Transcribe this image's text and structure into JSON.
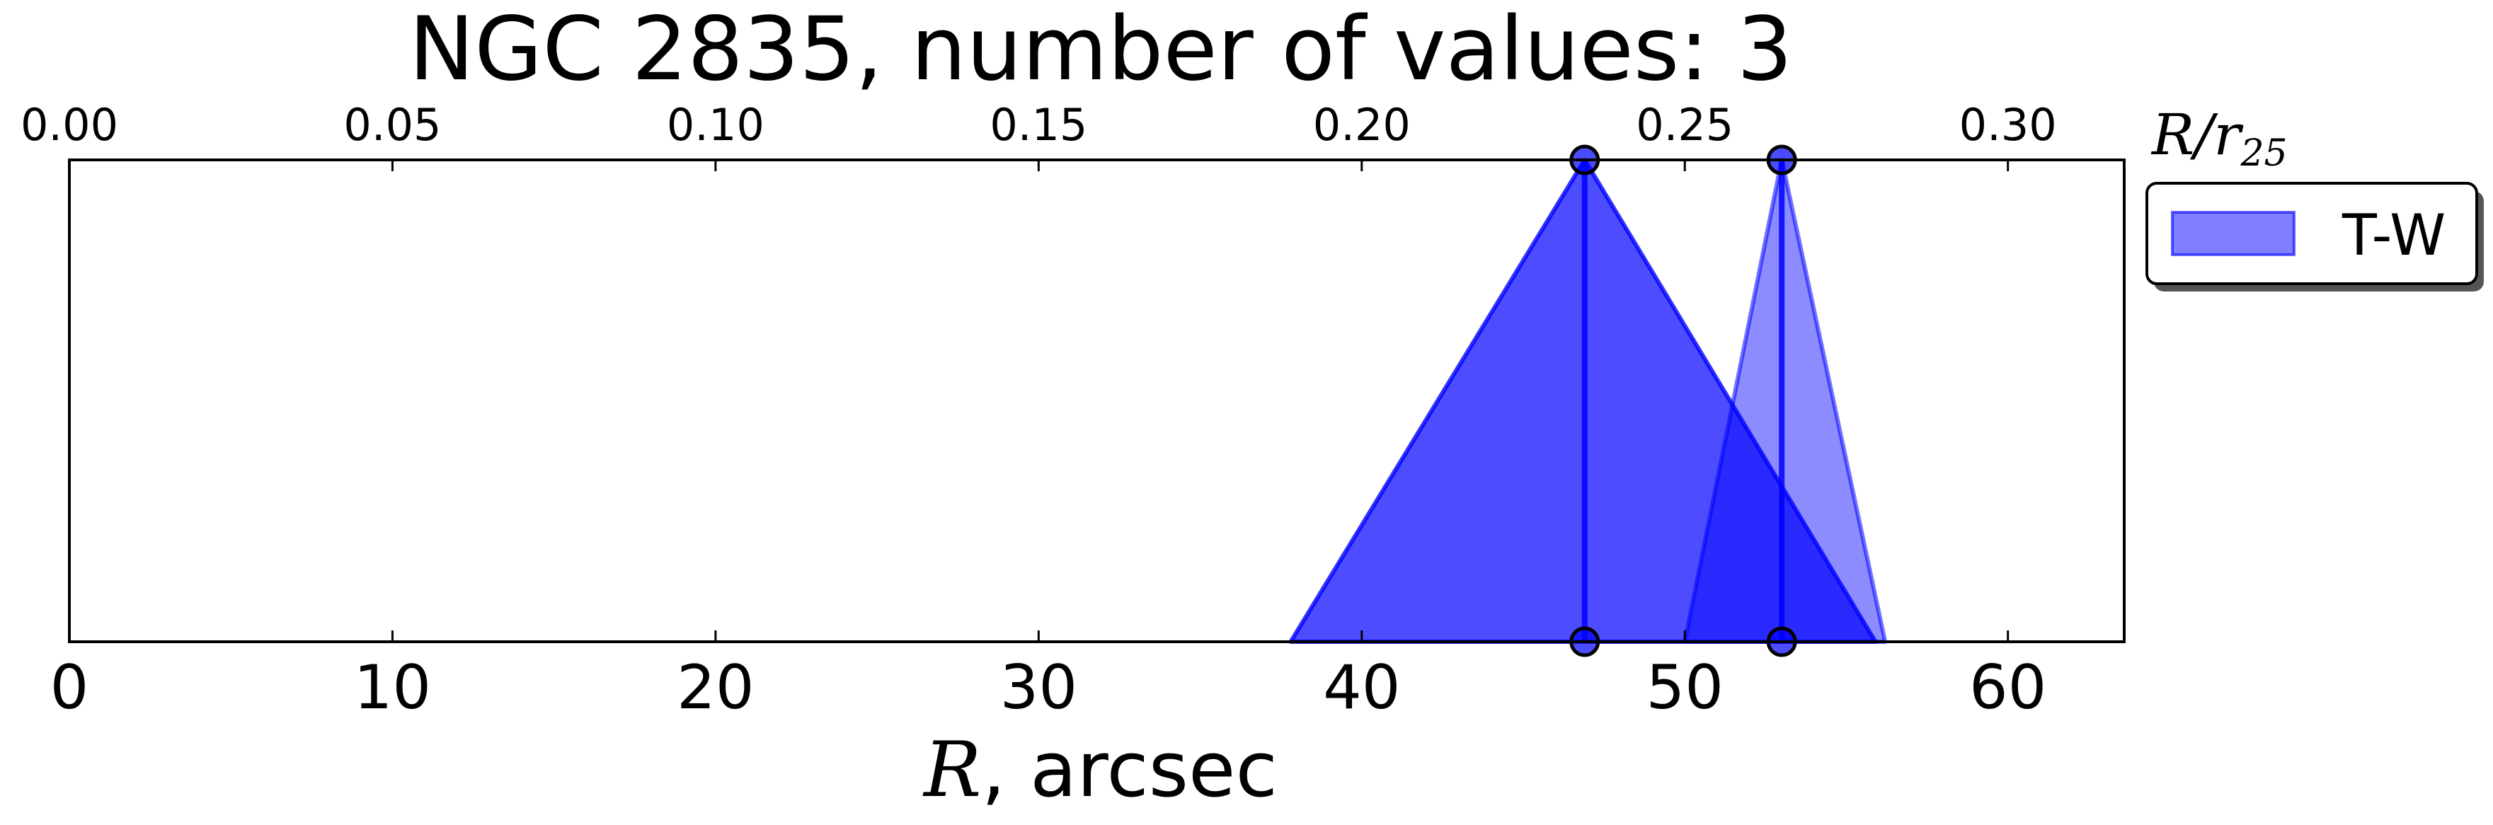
{
  "chart_data": {
    "type": "area",
    "title": "NGC 2835, number of values: 3",
    "xlabel": "R, arcsec",
    "xlabel_math": "R",
    "xlabel_rest": ", arcsec",
    "top_xlabel": "R/r",
    "top_xlabel_sub": "25",
    "xlim": [
      0,
      63.6
    ],
    "top_xlim": [
      0,
      0.318
    ],
    "bottom_ticks": [
      "0",
      "10",
      "20",
      "30",
      "40",
      "50",
      "60"
    ],
    "top_ticks": [
      "0.00",
      "0.05",
      "0.10",
      "0.15",
      "0.20",
      "0.25",
      "0.30"
    ],
    "legend": {
      "position": "outside-top-right",
      "entries": [
        {
          "label": "T-W",
          "color": "#0000ff"
        }
      ]
    },
    "series": [
      {
        "name": "T-W",
        "color": "#0000ff",
        "triangles": [
          {
            "left": 37.8,
            "peak": 46.9,
            "right": 55.9
          },
          {
            "left": 50.0,
            "peak": 53.0,
            "right": 56.2
          },
          {
            "left": 37.8,
            "peak": 46.9,
            "right": 55.9
          }
        ],
        "peaks": [
          46.9,
          53.0
        ]
      }
    ],
    "grid": false
  }
}
